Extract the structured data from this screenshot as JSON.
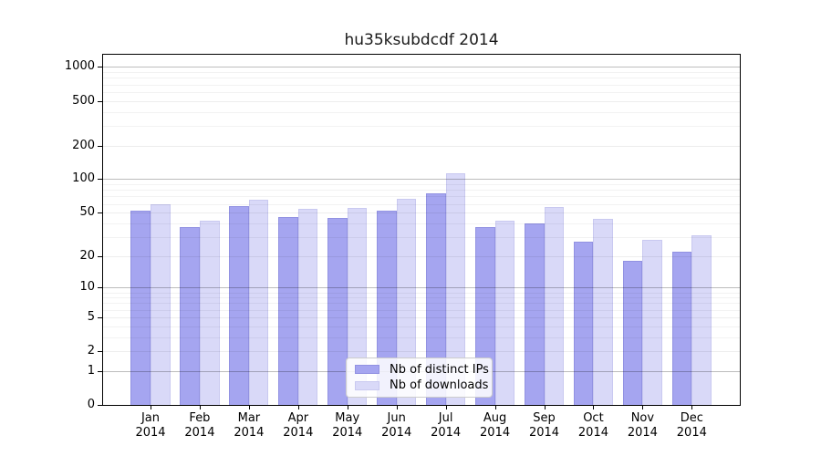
{
  "chart_data": {
    "type": "bar",
    "title": "hu35ksubdcdf 2014",
    "categories": [
      "Jan",
      "Feb",
      "Mar",
      "Apr",
      "May",
      "Jun",
      "Jul",
      "Aug",
      "Sep",
      "Oct",
      "Nov",
      "Dec"
    ],
    "x_tick_second_line": "2014",
    "series": [
      {
        "name": "Nb of distinct IPs",
        "color": "#a5a5f0",
        "edge_color": "#9292e2",
        "values": [
          52,
          37,
          57,
          46,
          45,
          52,
          75,
          37,
          40,
          27,
          18,
          22
        ]
      },
      {
        "name": "Nb of downloads",
        "color": "#d9d9f8",
        "edge_color": "#c9c9f0",
        "values": [
          60,
          42,
          65,
          54,
          55,
          66,
          113,
          42,
          56,
          44,
          28,
          31
        ]
      }
    ],
    "xlabel": "",
    "ylabel": "",
    "yscale": "log10(value+1)",
    "ylim": [
      0,
      1286
    ],
    "yticks_labeled": [
      0,
      1,
      2,
      5,
      10,
      20,
      50,
      100,
      200,
      500,
      1000
    ],
    "yticks_minor": [
      3,
      4,
      6,
      7,
      8,
      9,
      30,
      40,
      60,
      70,
      80,
      90,
      300,
      400,
      600,
      700,
      800,
      900
    ],
    "grid": "on",
    "legend": {
      "position": "lower center",
      "labels": [
        "Nb of distinct IPs",
        "Nb of downloads"
      ]
    },
    "colors": {
      "axis_border": "#000000",
      "grid_major": "rgba(0,0,0,0.26)",
      "grid_mid": "rgba(0,0,0,0.07)",
      "grid_minor": "rgba(0,0,0,0.05)",
      "background": "#ffffff",
      "text": "#000000"
    }
  }
}
